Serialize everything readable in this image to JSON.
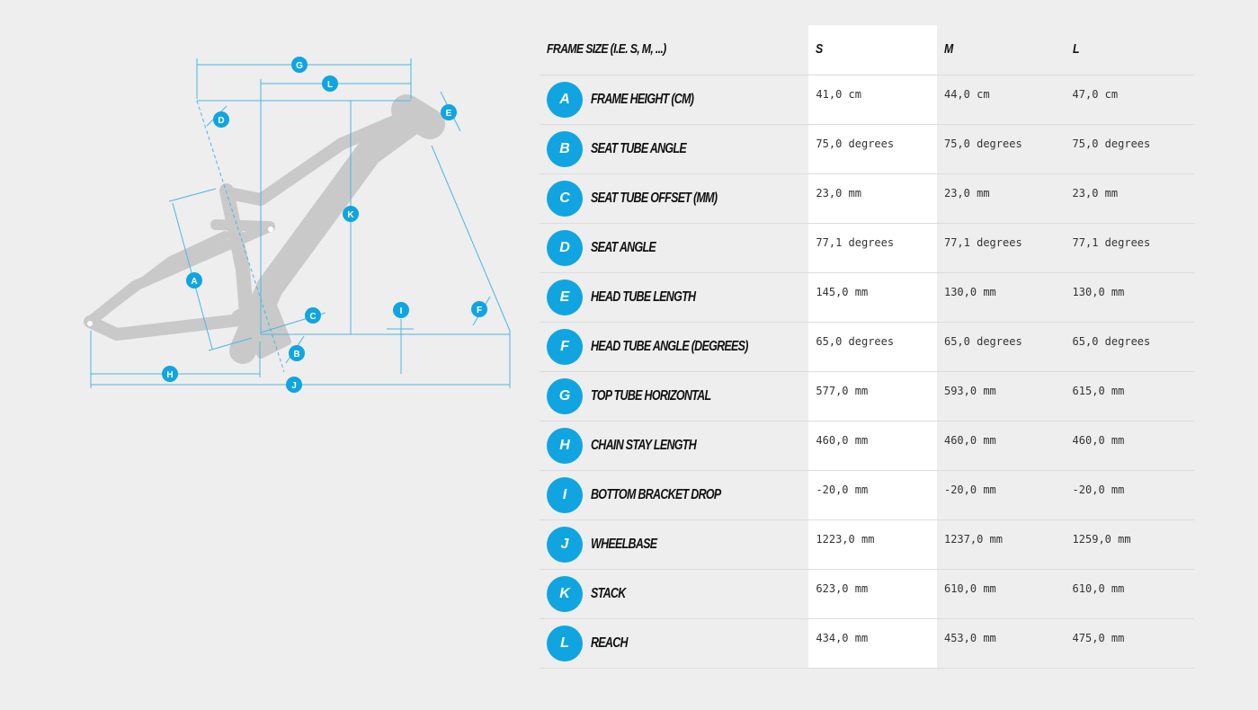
{
  "colors": {
    "accent": "#10a5e0",
    "frame": "#c9c9c9",
    "background": "#eeeeee",
    "highlight_column": "#ffffff"
  },
  "diagram": {
    "icon": "bike-frame-geometry-diagram",
    "markers": [
      "G",
      "L",
      "D",
      "E",
      "K",
      "A",
      "C",
      "I",
      "F",
      "B",
      "H",
      "J"
    ]
  },
  "table": {
    "header": {
      "label": "FRAME SIZE (I.E. S, M, ...)",
      "sizes": [
        "S",
        "M",
        "L"
      ]
    },
    "rows": [
      {
        "letter": "A",
        "name": "FRAME HEIGHT (CM)",
        "values": [
          "41,0 cm",
          "44,0 cm",
          "47,0 cm"
        ]
      },
      {
        "letter": "B",
        "name": "SEAT TUBE ANGLE",
        "values": [
          "75,0 degrees",
          "75,0 degrees",
          "75,0 degrees"
        ]
      },
      {
        "letter": "C",
        "name": "SEAT TUBE OFFSET (MM)",
        "values": [
          "23,0 mm",
          "23,0 mm",
          "23,0 mm"
        ]
      },
      {
        "letter": "D",
        "name": "SEAT ANGLE",
        "values": [
          "77,1 degrees",
          "77,1 degrees",
          "77,1 degrees"
        ]
      },
      {
        "letter": "E",
        "name": "HEAD TUBE LENGTH",
        "values": [
          "145,0 mm",
          "130,0 mm",
          "130,0 mm"
        ]
      },
      {
        "letter": "F",
        "name": "HEAD TUBE ANGLE (DEGREES)",
        "values": [
          "65,0 degrees",
          "65,0 degrees",
          "65,0 degrees"
        ]
      },
      {
        "letter": "G",
        "name": "TOP TUBE HORIZONTAL",
        "values": [
          "577,0 mm",
          "593,0 mm",
          "615,0 mm"
        ]
      },
      {
        "letter": "H",
        "name": "CHAIN STAY LENGTH",
        "values": [
          "460,0 mm",
          "460,0 mm",
          "460,0 mm"
        ]
      },
      {
        "letter": "I",
        "name": "BOTTOM BRACKET DROP",
        "values": [
          "-20,0 mm",
          "-20,0 mm",
          "-20,0 mm"
        ]
      },
      {
        "letter": "J",
        "name": "WHEELBASE",
        "values": [
          "1223,0 mm",
          "1237,0 mm",
          "1259,0 mm"
        ]
      },
      {
        "letter": "K",
        "name": "STACK",
        "values": [
          "623,0 mm",
          "610,0 mm",
          "610,0 mm"
        ]
      },
      {
        "letter": "L",
        "name": "REACH",
        "values": [
          "434,0 mm",
          "453,0 mm",
          "475,0 mm"
        ]
      }
    ]
  }
}
